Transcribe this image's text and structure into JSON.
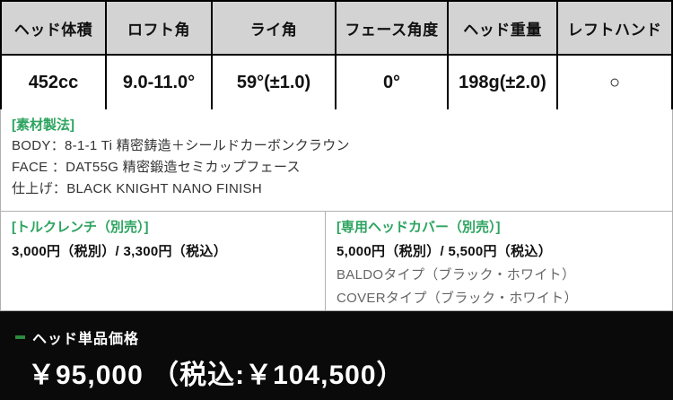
{
  "spec_table": {
    "columns": [
      {
        "header": "ヘッド体積",
        "value": "452cc"
      },
      {
        "header": "ロフト角",
        "value": "9.0-11.0°"
      },
      {
        "header": "ライ角",
        "value": "59°(±1.0)"
      },
      {
        "header": "フェース角度",
        "value": "0°"
      },
      {
        "header": "ヘッド重量",
        "value": "198g(±2.0)"
      },
      {
        "header": "レフトハンド",
        "value": "○"
      }
    ]
  },
  "materials": {
    "title": "[素材製法]",
    "lines": [
      "BODY：8-1-1 Ti 精密鋳造＋シールドカーボンクラウン",
      "FACE ：DAT55G 精密鍛造セミカップフェース",
      "仕上げ：BLACK KNIGHT NANO FINISH"
    ]
  },
  "torque_wrench": {
    "title": "[トルクレンチ（別売）]",
    "price": "3,000円（税別）/ 3,300円（税込）"
  },
  "head_cover": {
    "title": "[専用ヘッドカバー（別売）]",
    "price": "5,000円（税別）/ 5,500円（税込）",
    "options": [
      "BALDOタイプ（ブラック・ホワイト）",
      "COVERタイプ（ブラック・ホワイト）"
    ]
  },
  "price_bar": {
    "label": "ヘッド単品価格",
    "price": "￥95,000 （税込:￥104,500）"
  },
  "colors": {
    "accent_green": "#2ca45f",
    "bullet_green": "#2c8a3e",
    "header_bg": "#d3d3d3",
    "bar_bg": "#0a0a0a"
  }
}
